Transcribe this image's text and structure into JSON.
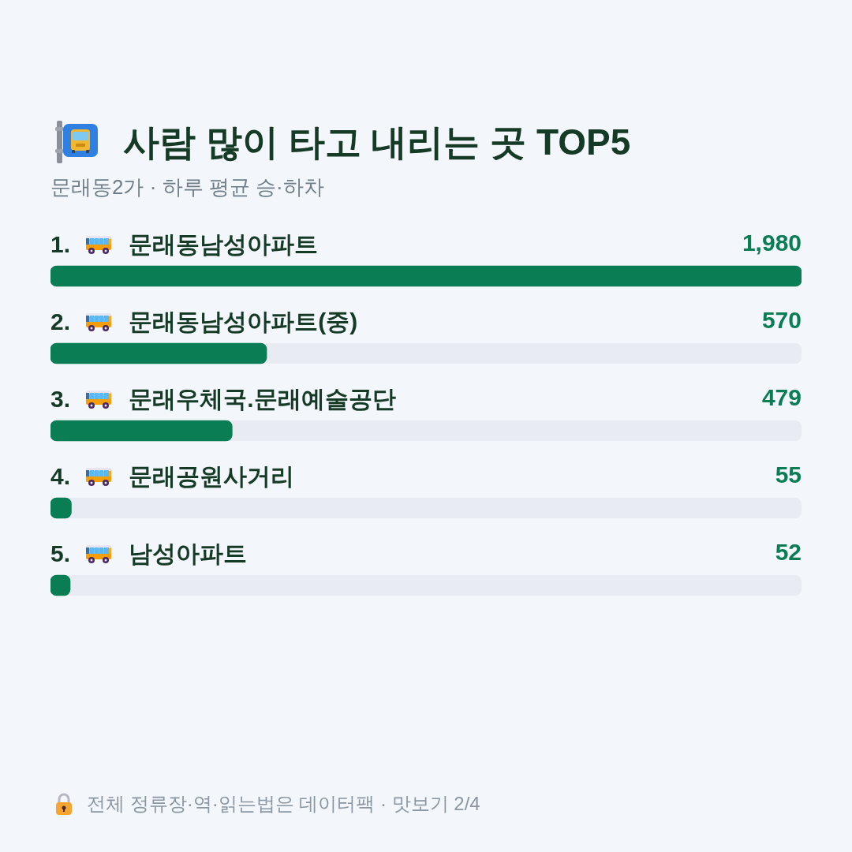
{
  "chart_data": {
    "type": "bar",
    "orientation": "horizontal",
    "title": "사람 많이 타고 내리는 곳 TOP5",
    "subtitle": "문래동2가 · 하루 평균 승·하차",
    "categories": [
      "1. 문래동남성아파트",
      "2. 문래동남성아파트(중)",
      "3. 문래우체국.문래예술공단",
      "4. 문래공원사거리",
      "5. 남성아파트"
    ],
    "values": [
      1980,
      570,
      479,
      55,
      52
    ],
    "color": "#0a7d55",
    "value_labels": [
      "1,980",
      "570",
      "479",
      "55",
      "52"
    ],
    "xlim": [
      0,
      1980
    ],
    "tick_labels": "y",
    "legend": false,
    "annotations": [
      "전체 정류장·역·읽는법은 데이터팩 · 맛보기 2/4"
    ]
  }
}
